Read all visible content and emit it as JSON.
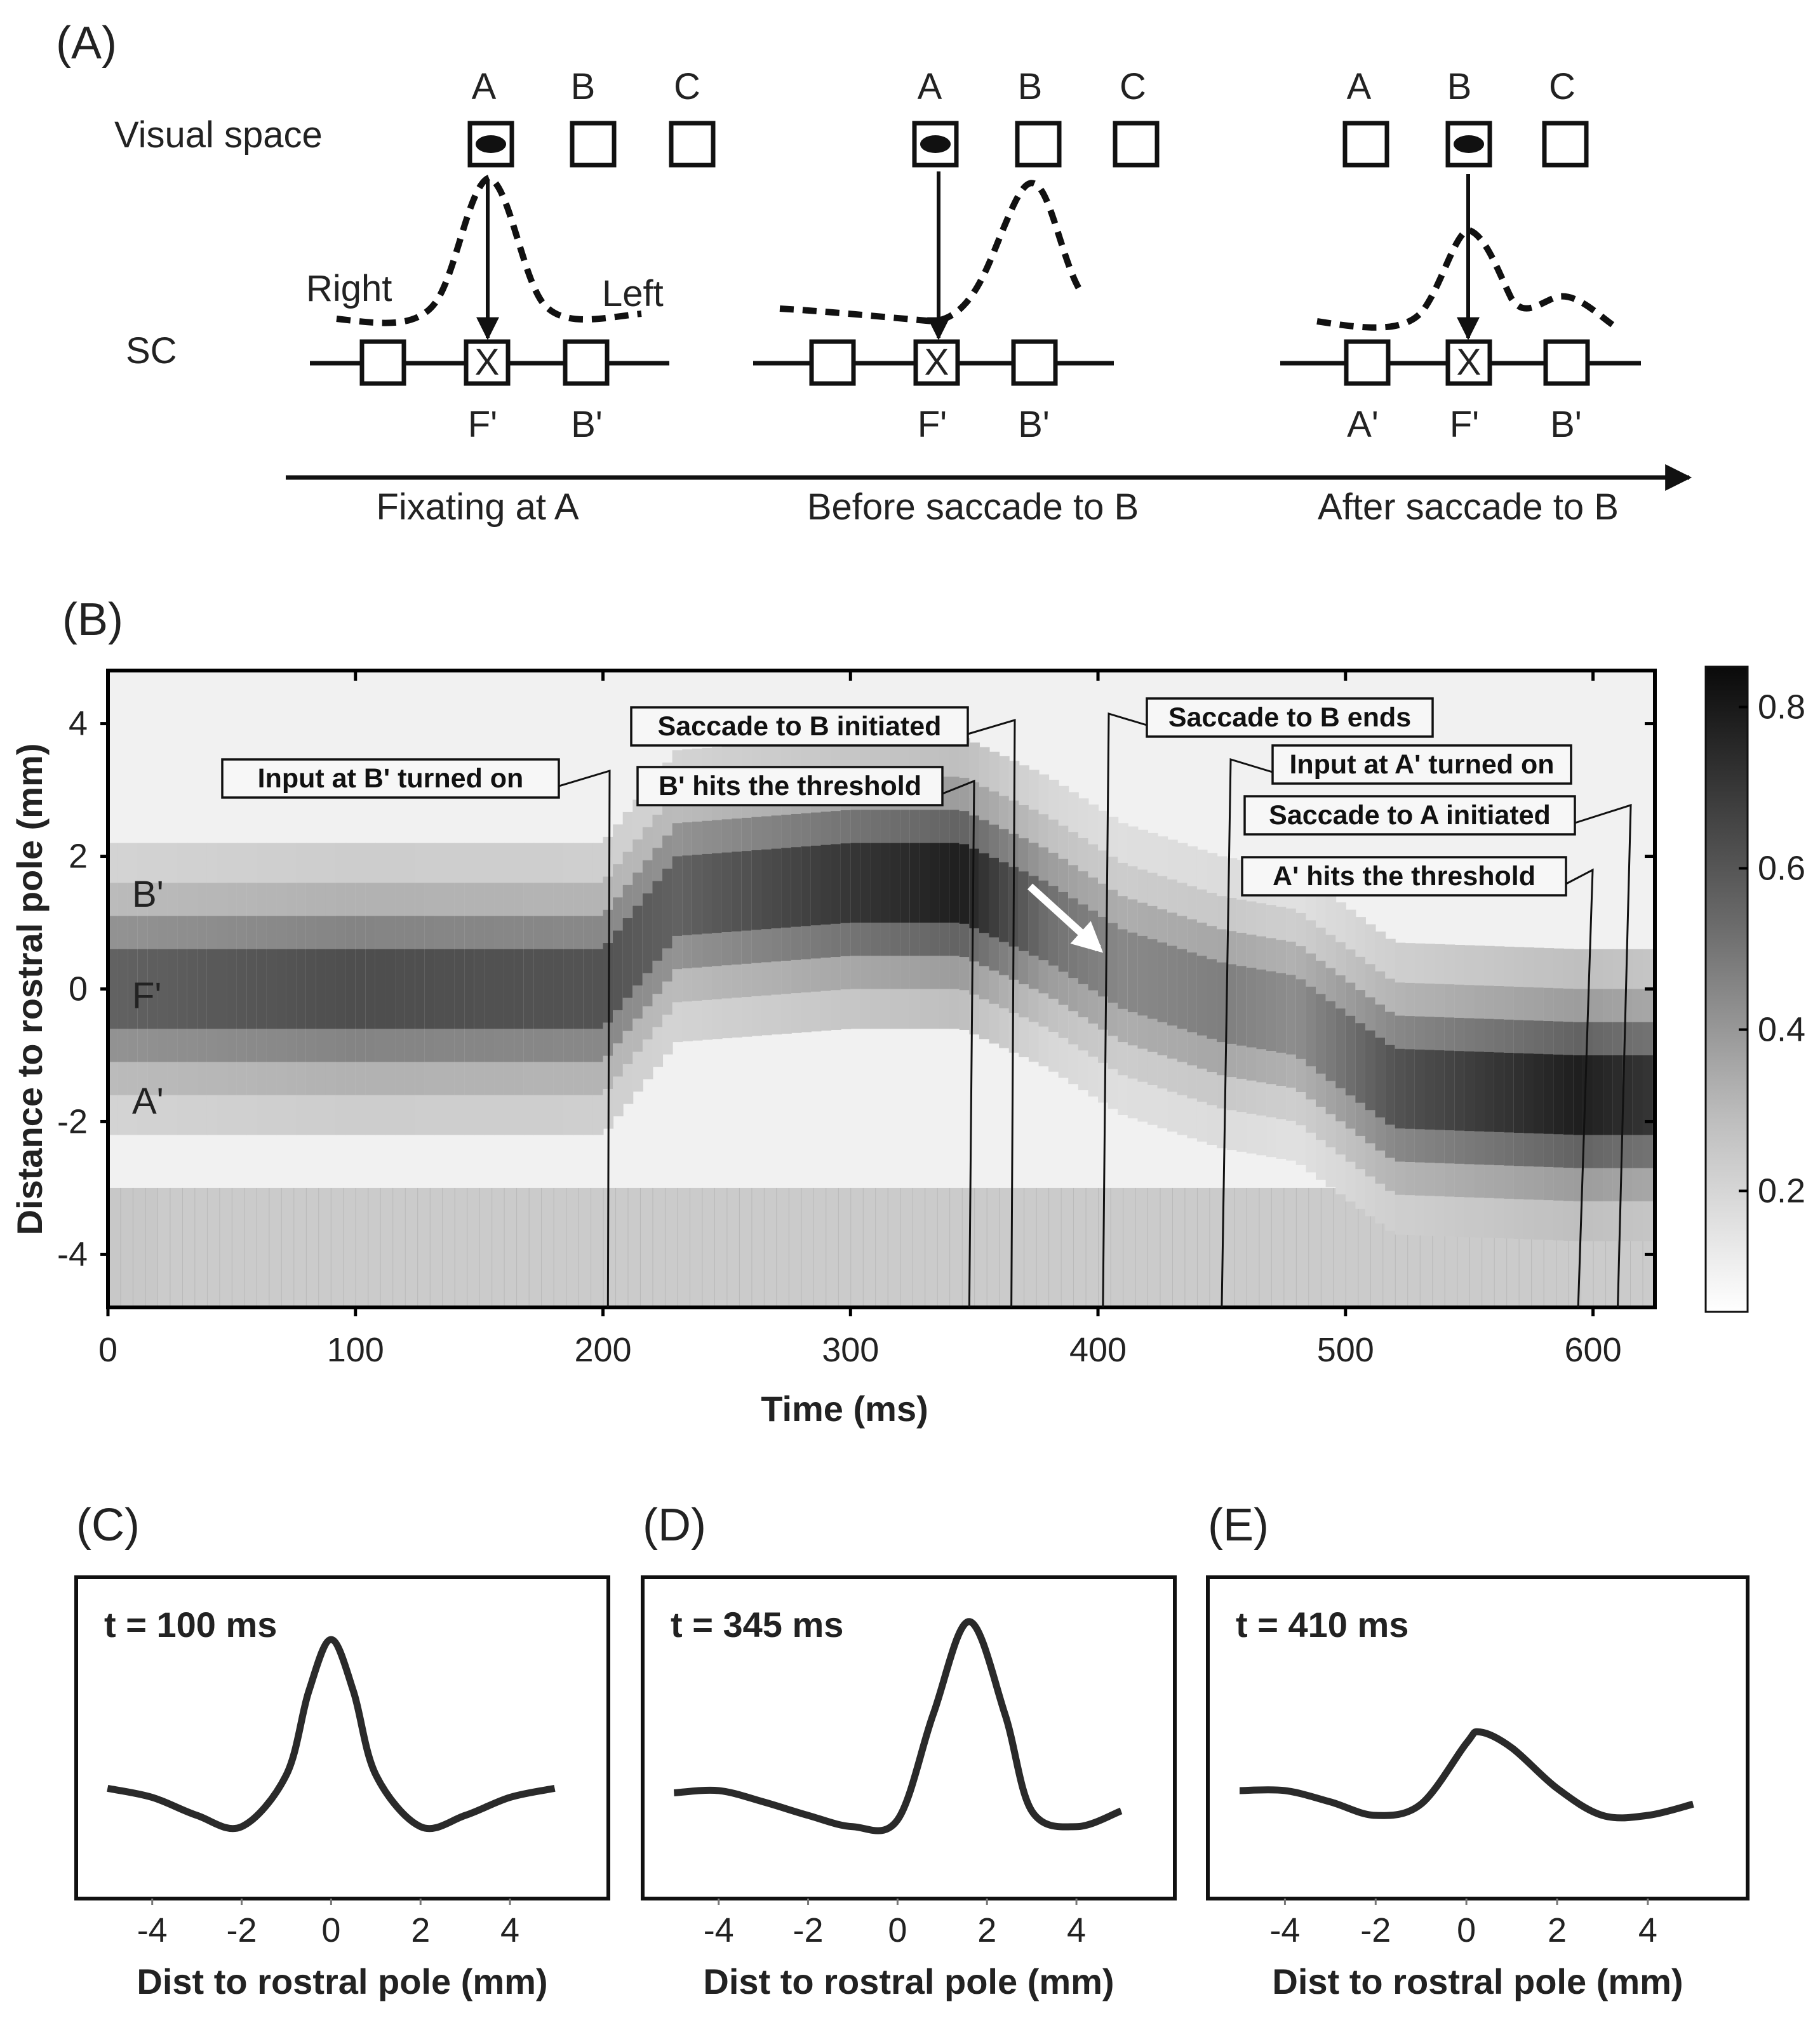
{
  "panel_a": {
    "label": "(A)",
    "visual_space_label": "Visual space",
    "sc_label": "SC",
    "right_label": "Right",
    "left_label": "Left",
    "stages": [
      {
        "letters": [
          "A",
          "B",
          "C"
        ],
        "sc_letters": [
          "",
          "F'",
          "B'"
        ],
        "caption": "Fixating at A"
      },
      {
        "letters": [
          "A",
          "B",
          "C"
        ],
        "sc_letters": [
          "",
          "F'",
          "B'"
        ],
        "caption": "Before saccade to B"
      },
      {
        "letters": [
          "A",
          "B",
          "C"
        ],
        "sc_letters": [
          "A'",
          "F'",
          "B'"
        ],
        "caption": "After saccade to B"
      }
    ],
    "sc_center_mark": "X"
  },
  "panel_b": {
    "label": "(B)",
    "xlabel": "Time (ms)",
    "ylabel": "Distance to rostral pole (mm)",
    "xticks": [
      "0",
      "100",
      "200",
      "300",
      "400",
      "500",
      "600"
    ],
    "yticks": [
      "4",
      "2",
      "0",
      "-2",
      "-4"
    ],
    "row_labels": [
      "B'",
      "F'",
      "A'"
    ],
    "colorbar_ticks": [
      "0.8",
      "0.6",
      "0.4",
      "0.2"
    ],
    "annotations": [
      {
        "text": "Input at B' turned on",
        "time": 202
      },
      {
        "text": "Saccade to B initiated",
        "time": 365
      },
      {
        "text": "B' hits the threshold",
        "time": 348
      },
      {
        "text": "Saccade to B ends",
        "time": 402
      },
      {
        "text": "Input at A' turned on",
        "time": 450
      },
      {
        "text": "Saccade to A initiated",
        "time": 610
      },
      {
        "text": "A' hits the threshold",
        "time": 594
      }
    ]
  },
  "profiles": [
    {
      "label": "(C)",
      "title": "t = 100 ms",
      "xlabel": "Dist to rostral pole (mm)",
      "xticks": [
        "-4",
        "-2",
        "0",
        "2",
        "4"
      ]
    },
    {
      "label": "(D)",
      "title": "t = 345 ms",
      "xlabel": "Dist to rostral pole (mm)",
      "xticks": [
        "-4",
        "-2",
        "0",
        "2",
        "4"
      ]
    },
    {
      "label": "(E)",
      "title": "t = 410 ms",
      "xlabel": "Dist to rostral pole (mm)",
      "xticks": [
        "-4",
        "-2",
        "0",
        "2",
        "4"
      ]
    }
  ],
  "chart_data": [
    {
      "type": "heatmap",
      "title": "(B)",
      "xlabel": "Time (ms)",
      "ylabel": "Distance to rostral pole (mm)",
      "xlim": [
        0,
        625
      ],
      "ylim": [
        -4.8,
        4.8
      ],
      "xticks": [
        0,
        100,
        200,
        300,
        400,
        500,
        600
      ],
      "yticks": [
        -4,
        -2,
        0,
        2,
        4
      ],
      "color_range": [
        0.05,
        0.85
      ],
      "colorbar_ticks": [
        0.2,
        0.4,
        0.6,
        0.8
      ],
      "activity_bump_track": [
        {
          "time": 0,
          "position": 0.0,
          "amplitude": 0.55
        },
        {
          "time": 100,
          "position": 0.0,
          "amplitude": 0.62
        },
        {
          "time": 200,
          "position": 0.0,
          "amplitude": 0.6
        },
        {
          "time": 230,
          "position": 1.4,
          "amplitude": 0.55
        },
        {
          "time": 300,
          "position": 1.6,
          "amplitude": 0.7
        },
        {
          "time": 345,
          "position": 1.6,
          "amplitude": 0.78
        },
        {
          "time": 380,
          "position": 1.0,
          "amplitude": 0.5
        },
        {
          "time": 410,
          "position": 0.3,
          "amplitude": 0.42
        },
        {
          "time": 450,
          "position": -0.2,
          "amplitude": 0.45
        },
        {
          "time": 480,
          "position": -0.4,
          "amplitude": 0.4
        },
        {
          "time": 520,
          "position": -1.5,
          "amplitude": 0.6
        },
        {
          "time": 594,
          "position": -1.6,
          "amplitude": 0.78
        },
        {
          "time": 625,
          "position": -1.6,
          "amplitude": 0.7
        }
      ]
    },
    {
      "type": "line",
      "title": "t = 100 ms",
      "xlabel": "Dist to rostral pole (mm)",
      "xlim": [
        -5.7,
        6.2
      ],
      "ylim": [
        -0.2,
        1.0
      ],
      "x": [
        -5,
        -4,
        -3,
        -2,
        -1,
        -0.5,
        0,
        0.5,
        1,
        2,
        3,
        4,
        5
      ],
      "y": [
        0.12,
        0.08,
        0.0,
        -0.05,
        0.18,
        0.55,
        0.78,
        0.55,
        0.18,
        -0.05,
        0.0,
        0.08,
        0.12
      ]
    },
    {
      "type": "line",
      "title": "t = 345 ms",
      "xlabel": "Dist to rostral pole (mm)",
      "xlim": [
        -5.7,
        6.2
      ],
      "ylim": [
        -0.2,
        1.0
      ],
      "x": [
        -5,
        -4,
        -3,
        -2,
        -1,
        0,
        0.8,
        1.6,
        2.4,
        3,
        4,
        5
      ],
      "y": [
        0.1,
        0.11,
        0.06,
        0.0,
        -0.05,
        -0.02,
        0.45,
        0.86,
        0.45,
        0.02,
        -0.05,
        0.02
      ]
    },
    {
      "type": "line",
      "title": "t = 410 ms",
      "xlabel": "Dist to rostral pole (mm)",
      "xlim": [
        -5.7,
        6.2
      ],
      "ylim": [
        -0.2,
        1.0
      ],
      "x": [
        -5,
        -4,
        -3,
        -2,
        -1,
        0,
        0.3,
        1,
        2,
        3,
        4,
        5
      ],
      "y": [
        0.11,
        0.11,
        0.06,
        0.0,
        0.05,
        0.32,
        0.37,
        0.3,
        0.12,
        0.0,
        0.0,
        0.05
      ]
    }
  ]
}
